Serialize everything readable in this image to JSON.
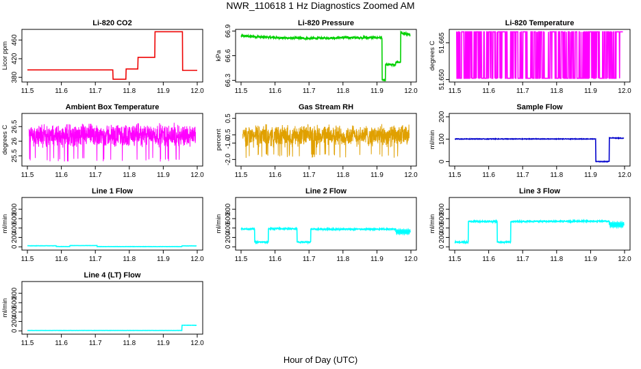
{
  "figure": {
    "title": "NWR_110618  1 Hz Diagnostics Zoomed AM",
    "xlabel": "Hour of Day (UTC)"
  },
  "chart_data": [
    {
      "id": "co2",
      "type": "line",
      "title": "Li-820 CO2",
      "ylabel": "Licor ppm",
      "color": "#ee0000",
      "xlim": [
        11.5,
        12.0
      ],
      "ylim": [
        370,
        483
      ],
      "xticks": [
        11.5,
        11.6,
        11.7,
        11.8,
        11.9,
        12.0
      ],
      "yticks": [
        380,
        420,
        460
      ],
      "ytick_labels": [
        "380",
        "420",
        "460"
      ],
      "series": [
        {
          "style": "steps",
          "x": [
            11.5,
            11.752,
            11.752,
            11.79,
            11.79,
            11.825,
            11.825,
            11.875,
            11.875,
            11.957,
            11.957,
            12.0
          ],
          "y": [
            396,
            396,
            376,
            376,
            398,
            398,
            423,
            423,
            478,
            478,
            395,
            395
          ]
        }
      ]
    },
    {
      "id": "pressure",
      "type": "line",
      "title": "Li-820 Pressure",
      "ylabel": "kPa",
      "color": "#00d000",
      "xlim": [
        11.5,
        12.0
      ],
      "ylim": [
        66.28,
        66.92
      ],
      "xticks": [
        11.5,
        11.6,
        11.7,
        11.8,
        11.9,
        12.0
      ],
      "yticks": [
        66.3,
        66.6,
        66.9
      ],
      "ytick_labels": [
        "66.3",
        "66.6",
        "66.9"
      ],
      "series": [
        {
          "style": "steps",
          "x": [
            11.5,
            11.6,
            11.7,
            11.8,
            11.915,
            11.915,
            11.925,
            11.925,
            11.955,
            11.955,
            11.97,
            11.97,
            11.998
          ],
          "y": [
            66.84,
            66.82,
            66.81,
            66.82,
            66.82,
            66.3,
            66.3,
            66.49,
            66.49,
            66.52,
            66.52,
            66.88,
            66.85
          ],
          "noise": 0.012
        }
      ]
    },
    {
      "id": "li_temp",
      "type": "line",
      "title": "Li-820 Temperature",
      "ylabel": "degrees C",
      "color": "#ff00ff",
      "xlim": [
        11.5,
        12.0
      ],
      "ylim": [
        51.649,
        51.6705
      ],
      "xticks": [
        11.5,
        11.6,
        11.7,
        11.8,
        11.9,
        12.0
      ],
      "yticks": [
        51.65,
        51.665
      ],
      "ytick_labels": [
        "51.650",
        "51.665"
      ],
      "series": [
        {
          "style": "toggle",
          "levels": [
            51.6505,
            51.6695
          ]
        }
      ]
    },
    {
      "id": "box_temp",
      "type": "line",
      "title": "Ambient Box Temperature",
      "ylabel": "degrees C",
      "color": "#ff00ff",
      "xlim": [
        11.5,
        12.0
      ],
      "ylim": [
        25.15,
        26.95
      ],
      "xticks": [
        11.5,
        11.6,
        11.7,
        11.8,
        11.9,
        12.0
      ],
      "yticks": [
        25.5,
        26.0,
        26.5
      ],
      "ytick_labels": [
        "25.5",
        "26",
        "26.5"
      ],
      "series": [
        {
          "style": "noise",
          "mean": 26.2,
          "spread": 0.45,
          "low_spikes": 25.3
        }
      ]
    },
    {
      "id": "rh",
      "type": "line",
      "title": "Gas Stream RH",
      "ylabel": "percent",
      "color": "#e0a000",
      "xlim": [
        11.5,
        12.0
      ],
      "ylim": [
        -2.4,
        0.8
      ],
      "xticks": [
        11.5,
        11.6,
        11.7,
        11.8,
        11.9,
        12.0
      ],
      "yticks": [
        -2.0,
        -1.0,
        -0.5,
        0.5
      ],
      "ytick_labels": [
        "-2.0",
        "-1.0",
        "-0.5",
        "0.5"
      ],
      "series": [
        {
          "style": "noise",
          "mean": -0.55,
          "spread": 0.75,
          "low_spikes": -1.9
        }
      ]
    },
    {
      "id": "sample_flow",
      "type": "line",
      "title": "Sample Flow",
      "ylabel": "ml/min",
      "color": "#0000cc",
      "xlim": [
        11.5,
        12.0
      ],
      "ylim": [
        -20,
        215
      ],
      "xticks": [
        11.5,
        11.6,
        11.7,
        11.8,
        11.9,
        12.0
      ],
      "yticks": [
        0,
        100,
        200
      ],
      "ytick_labels": [
        "0",
        "100",
        "200"
      ],
      "series": [
        {
          "style": "steps",
          "x": [
            11.5,
            11.915,
            11.915,
            11.955,
            11.955,
            11.998
          ],
          "y": [
            101,
            101,
            0,
            0,
            106,
            104
          ],
          "noise": 1.2
        }
      ]
    },
    {
      "id": "line1",
      "type": "line",
      "title": "Line 1 Flow",
      "ylabel": "ml/min",
      "color": "#00ffff",
      "xlim": [
        11.5,
        12.0
      ],
      "ylim": [
        -70,
        1050
      ],
      "xticks": [
        11.5,
        11.6,
        11.7,
        11.8,
        11.9,
        12.0
      ],
      "yticks": [
        0,
        200,
        400,
        600,
        800
      ],
      "ytick_labels": [
        "0",
        "200",
        "400",
        "600",
        "800"
      ],
      "series": [
        {
          "style": "steps",
          "x": [
            11.5,
            11.585,
            11.585,
            11.625,
            11.625,
            11.705,
            11.705,
            11.955,
            11.955,
            11.998
          ],
          "y": [
            22,
            22,
            6,
            6,
            26,
            26,
            5,
            5,
            20,
            20
          ],
          "noise": 2
        }
      ]
    },
    {
      "id": "line2",
      "type": "line",
      "title": "Line 2 Flow",
      "ylabel": "ml/min",
      "color": "#00ffff",
      "xlim": [
        11.5,
        12.0
      ],
      "ylim": [
        -70,
        1050
      ],
      "xticks": [
        11.5,
        11.6,
        11.7,
        11.8,
        11.9,
        12.0
      ],
      "yticks": [
        0,
        200,
        400,
        600,
        800
      ],
      "ytick_labels": [
        "0",
        "200",
        "400",
        "600",
        "800"
      ],
      "series": [
        {
          "style": "steps",
          "x": [
            11.5,
            11.54,
            11.54,
            11.58,
            11.58,
            11.665,
            11.665,
            11.705,
            11.705,
            11.955
          ],
          "y": [
            380,
            380,
            100,
            100,
            385,
            385,
            100,
            100,
            375,
            375
          ],
          "noise": 12,
          "tail": {
            "x0": 11.955,
            "x1": 11.998,
            "mean": 320,
            "amp": 45
          }
        }
      ]
    },
    {
      "id": "line3",
      "type": "line",
      "title": "Line 3 Flow",
      "ylabel": "ml/min",
      "color": "#00ffff",
      "xlim": [
        11.5,
        12.0
      ],
      "ylim": [
        -70,
        1050
      ],
      "xticks": [
        11.5,
        11.6,
        11.7,
        11.8,
        11.9,
        12.0
      ],
      "yticks": [
        0,
        200,
        400,
        600,
        800
      ],
      "ytick_labels": [
        "0",
        "200",
        "400",
        "600",
        "800"
      ],
      "series": [
        {
          "style": "steps",
          "x": [
            11.5,
            11.54,
            11.54,
            11.625,
            11.625,
            11.665,
            11.665,
            11.955
          ],
          "y": [
            100,
            100,
            540,
            540,
            100,
            100,
            540,
            545
          ],
          "noise": 12,
          "tail": {
            "x0": 11.955,
            "x1": 11.998,
            "mean": 470,
            "amp": 50
          }
        }
      ]
    },
    {
      "id": "line4",
      "type": "line",
      "title": "Line 4 (LT) Flow",
      "ylabel": "ml/min",
      "color": "#00ffff",
      "xlim": [
        11.5,
        12.0
      ],
      "ylim": [
        -70,
        1050
      ],
      "xticks": [
        11.5,
        11.6,
        11.7,
        11.8,
        11.9,
        12.0
      ],
      "yticks": [
        0,
        200,
        400,
        600,
        800
      ],
      "ytick_labels": [
        "0",
        "200",
        "400",
        "600",
        "800"
      ],
      "series": [
        {
          "style": "steps",
          "x": [
            11.5,
            11.955,
            11.955,
            11.998
          ],
          "y": [
            8,
            8,
            120,
            118
          ],
          "noise": 1.5
        }
      ]
    }
  ]
}
